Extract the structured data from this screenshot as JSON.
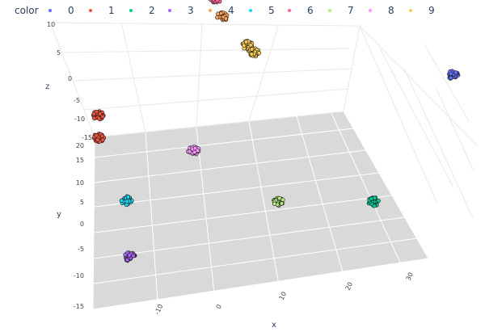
{
  "chart_data": {
    "type": "scatter3d",
    "legend": {
      "title": "color",
      "placement": "top",
      "entries": [
        {
          "name": "0",
          "color": "#636efa"
        },
        {
          "name": "1",
          "color": "#ef553b"
        },
        {
          "name": "2",
          "color": "#00cc96"
        },
        {
          "name": "3",
          "color": "#ab63fa"
        },
        {
          "name": "4",
          "color": "#ffa15a"
        },
        {
          "name": "5",
          "color": "#19d3f3"
        },
        {
          "name": "6",
          "color": "#ff6692"
        },
        {
          "name": "7",
          "color": "#b6e880"
        },
        {
          "name": "8",
          "color": "#ff97ff"
        },
        {
          "name": "9",
          "color": "#fecb52"
        }
      ]
    },
    "axes": {
      "x": {
        "label": "x",
        "ticks": [
          "-10",
          "0",
          "10",
          "20",
          "30"
        ]
      },
      "y": {
        "label": "y",
        "ticks": [
          "-15",
          "-10",
          "-5",
          "0",
          "5",
          "10",
          "15",
          "20"
        ]
      },
      "z": {
        "label": "z",
        "ticks": [
          "10",
          "5",
          "0",
          "-5",
          "-10",
          "-15"
        ]
      }
    },
    "clusters": [
      {
        "series": "0",
        "x": 38,
        "y": 12,
        "z": 2
      },
      {
        "series": "1",
        "x": -18,
        "y": 18,
        "z": -5
      },
      {
        "series": "1",
        "x": -18,
        "y": 17,
        "z": -9
      },
      {
        "series": "2",
        "x": 25,
        "y": 2,
        "z": -13
      },
      {
        "series": "3",
        "x": -14,
        "y": -4,
        "z": -12
      },
      {
        "series": "4",
        "x": 2,
        "y": 25,
        "z": 6
      },
      {
        "series": "5",
        "x": -14,
        "y": 6,
        "z": -11
      },
      {
        "series": "6",
        "x": 1,
        "y": 26,
        "z": 9
      },
      {
        "series": "7",
        "x": 10,
        "y": 4,
        "z": -13
      },
      {
        "series": "8",
        "x": -3,
        "y": 15,
        "z": -12
      },
      {
        "series": "9",
        "x": 6,
        "y": 24,
        "z": 0
      },
      {
        "series": "9",
        "x": 7,
        "y": 25,
        "z": -3
      }
    ],
    "floor_color": "#d9d9d9",
    "grid": true
  }
}
